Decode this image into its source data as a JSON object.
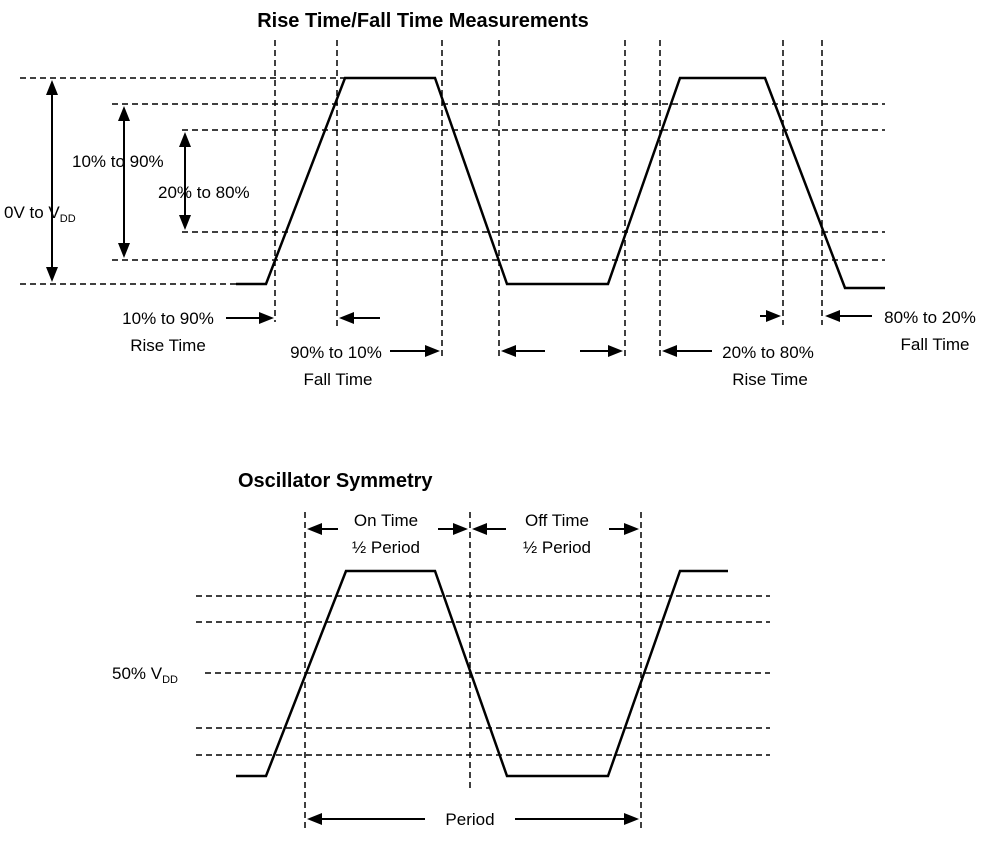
{
  "top": {
    "title": "Rise Time/Fall Time Measurements",
    "amplitude": {
      "main": "0V to V",
      "sub": "DD"
    },
    "label_10_90": "10% to 90%",
    "label_20_80": "20% to 80%",
    "rise_10_90": {
      "line1": "10% to 90%",
      "line2": "Rise Time"
    },
    "fall_90_10": {
      "line1": "90% to 10%",
      "line2": "Fall Time"
    },
    "rise_20_80": {
      "line1": "20% to 80%",
      "line2": "Rise Time"
    },
    "fall_80_20": {
      "line1": "80% to 20%",
      "line2": "Fall Time"
    }
  },
  "bottom": {
    "title": "Oscillator Symmetry",
    "vdd50": {
      "main": "50% V",
      "sub": "DD"
    },
    "on_time": {
      "line1": "On Time",
      "line2": "½ Period"
    },
    "off_time": {
      "line1": "Off Time",
      "line2": "½ Period"
    },
    "period": "Period"
  }
}
